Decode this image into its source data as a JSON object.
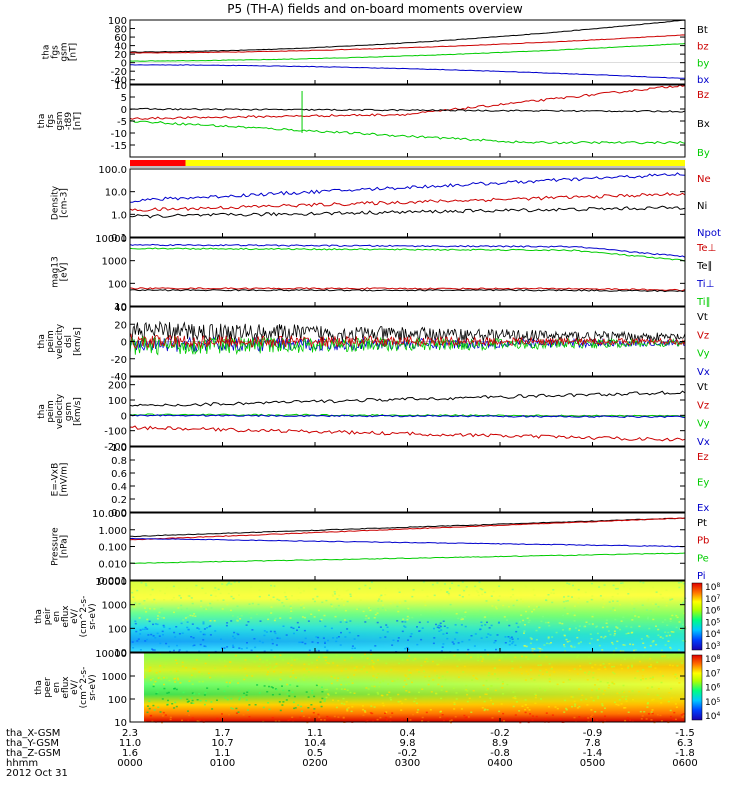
{
  "title": "P5 (TH-A) fields and on-board moments overview",
  "date_label": "2012 Oct 31",
  "chart_data": [
    {
      "type": "line",
      "name": "fgs_gsm",
      "ylabel": [
        "tha",
        "fgs",
        "gsm",
        "[nT]"
      ],
      "ylim": [
        -50,
        100
      ],
      "yticks": [
        "100",
        "80",
        "60",
        "40",
        "20",
        "0",
        "-20",
        "-40"
      ],
      "series": [
        {
          "name": "Bt",
          "color": "#000000",
          "start": 25,
          "end": 100
        },
        {
          "name": "bz",
          "color": "#cc0000",
          "start": 23,
          "end": 65
        },
        {
          "name": "by",
          "color": "#00cc00",
          "start": 4,
          "end": 45
        },
        {
          "name": "bx",
          "color": "#0000cc",
          "start": -5,
          "end": -37
        }
      ]
    },
    {
      "type": "line",
      "name": "fgs_dsl",
      "ylabel": [
        "tha",
        "fgs",
        "gsm",
        "-t89",
        "[nT]"
      ],
      "ylim": [
        -20,
        10
      ],
      "yticks": [
        "10",
        "5",
        "0",
        "-5",
        "-10",
        "-15"
      ],
      "series": [
        {
          "name": "Bz",
          "color": "#cc0000",
          "start": -4,
          "end": 10
        },
        {
          "name": "Bx",
          "color": "#000000",
          "start": 0,
          "end": -1
        },
        {
          "name": "By",
          "color": "#00cc00",
          "start": -5,
          "end": -14
        }
      ]
    },
    {
      "type": "bar",
      "name": "mode_bar",
      "segments": [
        {
          "from": "0000",
          "to": "0036",
          "color": "#ff0000"
        },
        {
          "from": "0036",
          "to": "0600",
          "color": "#ffff00"
        }
      ]
    },
    {
      "type": "line",
      "name": "density",
      "ylabel": [
        "Density",
        "[cm-3]"
      ],
      "ylim": [
        0.1,
        100
      ],
      "yticks": [
        "100.0",
        "10.0",
        "1.0",
        "0.1"
      ],
      "series": [
        {
          "name": "Ne",
          "color": "#cc0000",
          "start": 1.5,
          "end": 8
        },
        {
          "name": "Ni",
          "color": "#000000",
          "start": 0.8,
          "end": 2
        },
        {
          "name": "Npot",
          "color": "#0000cc",
          "start": 4,
          "end": 60
        }
      ]
    },
    {
      "type": "line",
      "name": "temperature",
      "ylabel": [
        "mag13",
        "[eV]"
      ],
      "ylim": [
        10,
        10000
      ],
      "yticks": [
        "10000",
        "1000",
        "100",
        "10"
      ],
      "series": [
        {
          "name": "Te⊥",
          "color": "#cc0000",
          "start": 60,
          "end": 50
        },
        {
          "name": "Te∥",
          "color": "#000000",
          "start": 50,
          "end": 45
        },
        {
          "name": "Ti⊥",
          "color": "#0000cc",
          "start": 5000,
          "end": 1500
        },
        {
          "name": "Ti∥",
          "color": "#00cc00",
          "start": 3500,
          "end": 1000
        }
      ]
    },
    {
      "type": "line",
      "name": "peim_velocity",
      "ylabel": [
        "tha",
        "peim",
        "velocity",
        "dsl",
        "[km/s]"
      ],
      "ylim": [
        -40,
        40
      ],
      "yticks": [
        "40",
        "20",
        "0",
        "-20",
        "-40"
      ],
      "series": [
        {
          "name": "Vt",
          "color": "#000000"
        },
        {
          "name": "Vz",
          "color": "#cc0000"
        },
        {
          "name": "Vy",
          "color": "#00cc00"
        },
        {
          "name": "Vx",
          "color": "#0000cc"
        }
      ]
    },
    {
      "type": "line",
      "name": "peim_velocity_gsm",
      "ylabel": [
        "tha",
        "peim",
        "velocity",
        "gsm",
        "[km/s]"
      ],
      "ylim": [
        -200,
        250
      ],
      "yticks": [
        "200",
        "100",
        "0",
        "-100",
        "-200"
      ],
      "series": [
        {
          "name": "Vt",
          "color": "#000000",
          "start": 60,
          "end": 150
        },
        {
          "name": "Vz",
          "color": "#cc0000",
          "start": -80,
          "end": -160
        },
        {
          "name": "Vy",
          "color": "#00cc00",
          "start": 5,
          "end": -5
        },
        {
          "name": "Vx",
          "color": "#0000cc",
          "start": 0,
          "end": -10
        }
      ]
    },
    {
      "type": "line",
      "name": "efield",
      "ylabel": [
        "E=-VxB",
        "[mV/m]"
      ],
      "ylim": [
        0,
        1
      ],
      "yticks": [
        "1.0",
        "0.8",
        "0.6",
        "0.4",
        "0.2",
        "0.0"
      ],
      "series": [
        {
          "name": "Ez",
          "color": "#cc0000"
        },
        {
          "name": "Ey",
          "color": "#00cc00"
        },
        {
          "name": "Ex",
          "color": "#0000cc"
        }
      ]
    },
    {
      "type": "line",
      "name": "pressure",
      "ylabel": [
        "Pressure",
        "[nPa]"
      ],
      "ylim": [
        0.001,
        10
      ],
      "yticks": [
        "10.000",
        "1.000",
        "0.100",
        "0.010",
        "0.001"
      ],
      "series": [
        {
          "name": "Pt",
          "color": "#000000",
          "start": 0.4,
          "end": 5
        },
        {
          "name": "Pb",
          "color": "#cc0000",
          "start": 0.25,
          "end": 5
        },
        {
          "name": "Pe",
          "color": "#00cc00",
          "start": 0.01,
          "end": 0.04
        },
        {
          "name": "Pi",
          "color": "#0000cc",
          "start": 0.3,
          "end": 0.1
        }
      ]
    },
    {
      "type": "heatmap",
      "name": "peir_spectrogram",
      "ylabel": [
        "tha",
        "peir",
        "en",
        "eflux",
        "eV/",
        "(cm^2-s-",
        "sr-eV)"
      ],
      "ylim": [
        10,
        10000
      ],
      "yticks": [
        "10000",
        "1000",
        "100",
        "10"
      ],
      "colorbar_ticks": [
        "10^8",
        "10^7",
        "10^6",
        "10^5",
        "10^4",
        "10^3"
      ]
    },
    {
      "type": "heatmap",
      "name": "peer_spectrogram",
      "ylabel": [
        "tha",
        "peer",
        "en",
        "eflux",
        "eV/",
        "(cm^2-s-",
        "sr-eV)"
      ],
      "ylim": [
        10,
        10000
      ],
      "yticks": [
        "10000",
        "1000",
        "100",
        "10"
      ],
      "colorbar_ticks": [
        "10^8",
        "10^7",
        "10^6",
        "10^5",
        "10^4"
      ]
    }
  ],
  "x_axis": {
    "row_labels": [
      "tha_X-GSM",
      "tha_Y-GSM",
      "tha_Z-GSM",
      "hhmm"
    ],
    "columns": [
      [
        "2.3",
        "11.0",
        "1.6",
        "0000"
      ],
      [
        "1.7",
        "10.7",
        "1.1",
        "0100"
      ],
      [
        "1.1",
        "10.4",
        "0.5",
        "0200"
      ],
      [
        "0.4",
        "9.8",
        "-0.2",
        "0300"
      ],
      [
        "-0.2",
        "8.9",
        "-0.8",
        "0400"
      ],
      [
        "-0.9",
        "7.8",
        "-1.4",
        "0500"
      ],
      [
        "-1.5",
        "6.3",
        "-1.8",
        "0600"
      ]
    ]
  }
}
